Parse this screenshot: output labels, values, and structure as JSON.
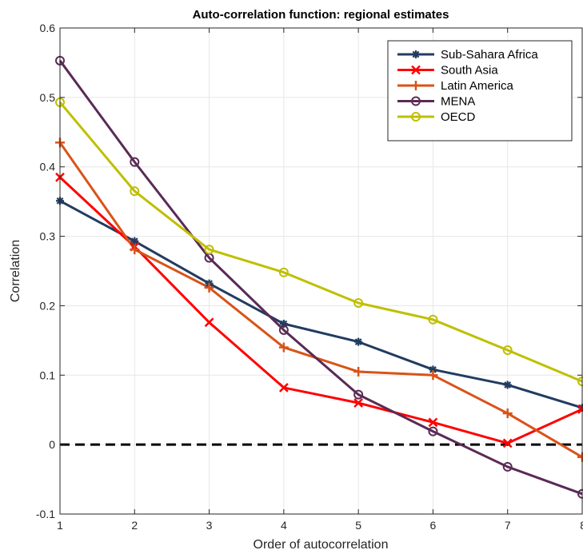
{
  "chart_data": {
    "type": "line",
    "title": "Auto-correlation function: regional estimates",
    "xlabel": "Order of autocorrelation",
    "ylabel": "Correlation",
    "xlim": [
      1,
      8
    ],
    "ylim": [
      -0.1,
      0.6
    ],
    "x": [
      1,
      2,
      3,
      4,
      5,
      6,
      7,
      8
    ],
    "x_ticks": [
      "1",
      "2",
      "3",
      "4",
      "5",
      "6",
      "7",
      "8"
    ],
    "y_ticks": [
      "-0.1",
      "0",
      "0.1",
      "0.2",
      "0.3",
      "0.4",
      "0.5",
      "0.6"
    ],
    "y_tick_values": [
      -0.1,
      0,
      0.1,
      0.2,
      0.3,
      0.4,
      0.5,
      0.6
    ],
    "grid": true,
    "legend_position": "top-right",
    "reference_line": {
      "y": 0,
      "style": "dashed",
      "color": "#000000"
    },
    "series": [
      {
        "name": "Sub-Sahara Africa",
        "color": "#213c60",
        "marker": "asterisk",
        "values": [
          0.351,
          0.293,
          0.232,
          0.174,
          0.148,
          0.108,
          0.086,
          0.053
        ]
      },
      {
        "name": "South Asia",
        "color": "#ff0000",
        "marker": "x",
        "values": [
          0.385,
          0.285,
          0.176,
          0.082,
          0.06,
          0.032,
          0.002,
          0.051
        ]
      },
      {
        "name": "Latin America",
        "color": "#d95319",
        "marker": "plus",
        "values": [
          0.435,
          0.281,
          0.226,
          0.14,
          0.105,
          0.1,
          0.045,
          -0.018
        ]
      },
      {
        "name": "MENA",
        "color": "#5a2a55",
        "marker": "circle",
        "values": [
          0.553,
          0.407,
          0.269,
          0.165,
          0.072,
          0.019,
          -0.032,
          -0.071
        ]
      },
      {
        "name": "OECD",
        "color": "#bfbf00",
        "marker": "circle",
        "values": [
          0.493,
          0.365,
          0.281,
          0.248,
          0.204,
          0.18,
          0.136,
          0.091
        ]
      }
    ]
  }
}
